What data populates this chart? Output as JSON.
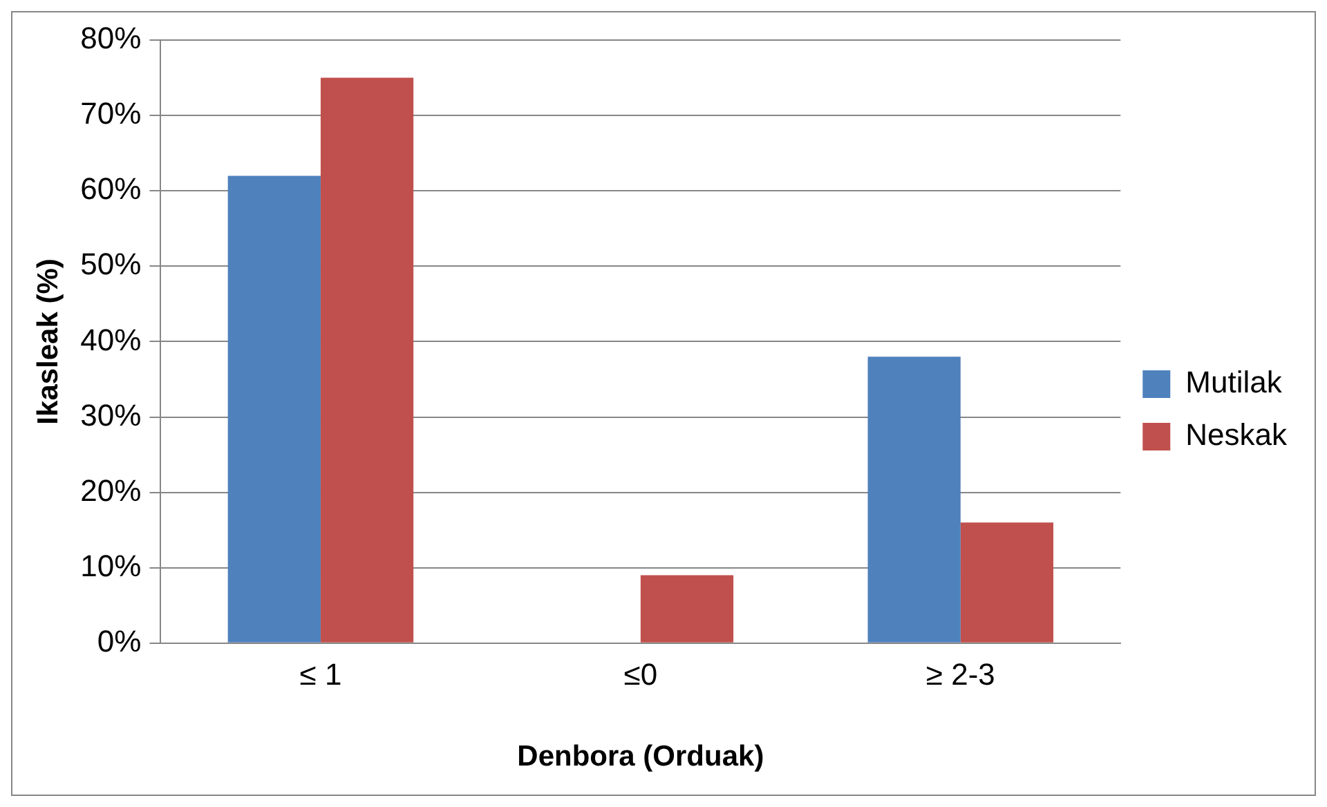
{
  "chart_data": {
    "type": "bar",
    "xlabel": "Denbora (Orduak)",
    "ylabel": "Ikasleak (%)",
    "categories": [
      "≤ 1",
      "≤0",
      "≥ 2-3"
    ],
    "series": [
      {
        "name": "Mutilak",
        "color": "#4f81bd",
        "values": [
          62,
          0,
          38
        ]
      },
      {
        "name": "Neskak",
        "color": "#c0504d",
        "values": [
          75,
          9,
          16
        ]
      }
    ],
    "ylim": [
      0,
      80
    ],
    "yticks": [
      {
        "value": 0,
        "label": "0%"
      },
      {
        "value": 10,
        "label": "10%"
      },
      {
        "value": 20,
        "label": "20%"
      },
      {
        "value": 30,
        "label": "30%"
      },
      {
        "value": 40,
        "label": "40%"
      },
      {
        "value": 50,
        "label": "50%"
      },
      {
        "value": 60,
        "label": "60%"
      },
      {
        "value": 70,
        "label": "70%"
      },
      {
        "value": 80,
        "label": "80%"
      }
    ],
    "grid": "y",
    "legend": "right"
  }
}
